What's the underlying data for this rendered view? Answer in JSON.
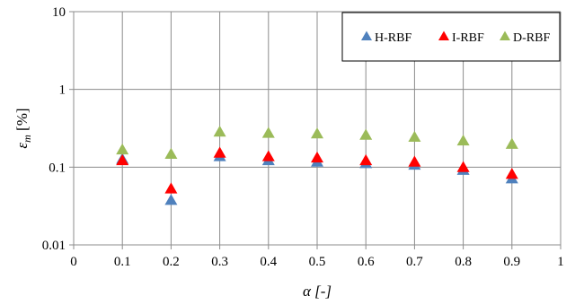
{
  "chart_data": {
    "type": "scatter",
    "title": "",
    "xlabel": "α [-]",
    "ylabel": "ε",
    "ylabel_sub": "m",
    "ylabel_unit": " [%]",
    "xlim": [
      0,
      1
    ],
    "ylim": [
      0.01,
      10
    ],
    "yscale": "log",
    "grid": "vertical lines at each x tick; horizontal lines at each decade",
    "legend_position": "top-right",
    "x_ticks": [
      "0",
      "0.1",
      "0.2",
      "0.3",
      "0.4",
      "0.5",
      "0.6",
      "0.7",
      "0.8",
      "0.9",
      "1"
    ],
    "y_ticks": [
      "0.01",
      "0.1",
      "1",
      "10"
    ],
    "x": [
      0.1,
      0.2,
      0.3,
      0.4,
      0.5,
      0.6,
      0.7,
      0.8,
      0.9
    ],
    "series": [
      {
        "name": "H-RBF",
        "color": "#4f81bd",
        "marker": "triangle",
        "values": [
          0.125,
          0.037,
          0.135,
          0.12,
          0.115,
          0.11,
          0.105,
          0.09,
          0.07
        ]
      },
      {
        "name": "I-RBF",
        "color": "#ff0000",
        "marker": "triangle",
        "values": [
          0.12,
          0.052,
          0.15,
          0.135,
          0.13,
          0.12,
          0.115,
          0.098,
          0.08
        ]
      },
      {
        "name": "D-RBF",
        "color": "#9bbb59",
        "marker": "triangle",
        "values": [
          0.165,
          0.145,
          0.28,
          0.27,
          0.265,
          0.255,
          0.24,
          0.215,
          0.195
        ]
      }
    ]
  }
}
